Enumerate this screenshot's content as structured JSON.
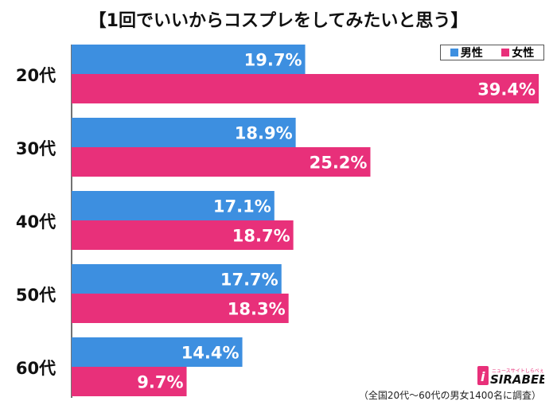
{
  "chart_data": {
    "type": "bar",
    "orientation": "horizontal",
    "title": "【1回でいいからコスプレをしてみたいと思う】",
    "categories": [
      "20代",
      "30代",
      "40代",
      "50代",
      "60代"
    ],
    "series": [
      {
        "name": "男性",
        "color": "#3d8fe0",
        "values": [
          19.7,
          18.9,
          17.1,
          17.7,
          14.4
        ],
        "labels": [
          "19.7%",
          "18.9%",
          "17.1%",
          "17.7%",
          "14.4%"
        ]
      },
      {
        "name": "女性",
        "color": "#e8307a",
        "values": [
          39.4,
          25.2,
          18.7,
          18.3,
          9.7
        ],
        "labels": [
          "39.4%",
          "25.2%",
          "18.7%",
          "18.3%",
          "9.7%"
        ]
      }
    ],
    "xlim": [
      0,
      40
    ],
    "grid": false,
    "legend_position": "top-right"
  },
  "footnote": "（全国20代～60代の男女1400名に調査）",
  "logo": {
    "text": "SIRABEE",
    "subtext": "ニュースサイトしらべぇ",
    "color": "#e8307a"
  }
}
